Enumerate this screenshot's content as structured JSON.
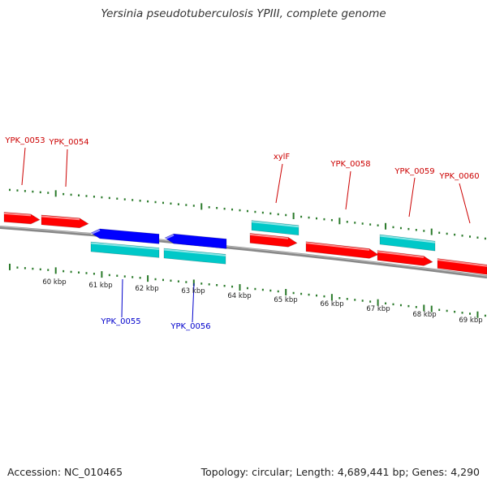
{
  "title": "Yersinia pseudotuberculosis YPIII, complete genome",
  "footer": {
    "accession": "Accession: NC_010465",
    "summary": "Topology: circular; Length: 4,689,441 bp; Genes: 4,290"
  },
  "colors": {
    "forward_gene": "#ff0000",
    "reverse_gene": "#0000ff",
    "rna_feature": "#00c8c8",
    "backbone": "#888888",
    "tick": "#2a7a2a",
    "forward_label": "#cc0000",
    "reverse_label": "#0000cc",
    "scale_label": "#222222"
  },
  "scale": {
    "unit": "kbp",
    "labels": [
      "60 kbp",
      "61 kbp",
      "62 kbp",
      "63 kbp",
      "64 kbp",
      "65 kbp",
      "66 kbp",
      "67 kbp",
      "68 kbp",
      "69 kbp"
    ]
  },
  "genes": [
    {
      "label": "YPK_0053",
      "strand": "forward",
      "has_rna": false
    },
    {
      "label": "YPK_0054",
      "strand": "forward",
      "has_rna": false
    },
    {
      "label": "YPK_0055",
      "strand": "reverse",
      "has_rna": true
    },
    {
      "label": "YPK_0056",
      "strand": "reverse",
      "has_rna": true
    },
    {
      "label": "xylF",
      "strand": "forward",
      "has_rna": true
    },
    {
      "label": "YPK_0058",
      "strand": "forward",
      "has_rna": false
    },
    {
      "label": "YPK_0059",
      "strand": "forward",
      "has_rna": true
    },
    {
      "label": "YPK_0060",
      "strand": "forward",
      "has_rna": false
    }
  ]
}
